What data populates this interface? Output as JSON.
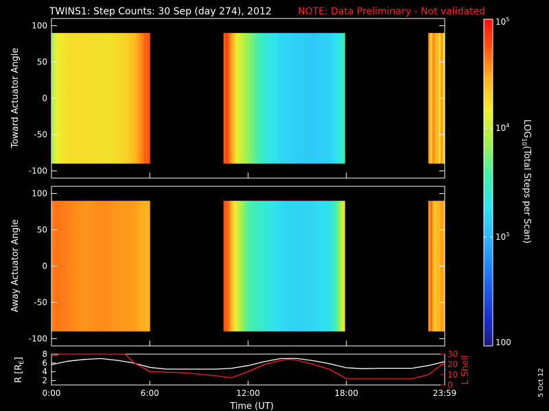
{
  "title": "TWINS1: Step Counts: 30 Sep (day 274), 2012",
  "note": "NOTE: Data Preliminary - Not validated",
  "date_stamp": "5 Oct 12",
  "colors": {
    "background": "#000000",
    "axes": "#ffffff",
    "note": "#ff2020",
    "r_line": "#ffffff",
    "lshell_line": "#ff2020"
  },
  "colorbar": {
    "label": "LOG10(Total Steps per Scan)",
    "label_parts": [
      "LOG",
      "10",
      "(Total Steps per Scan)"
    ],
    "scale": "log",
    "range": [
      100,
      100000
    ],
    "ticks": [
      {
        "value": 100,
        "label": "100"
      },
      {
        "value": 1000,
        "base": "10",
        "exp": "3"
      },
      {
        "value": 10000,
        "base": "10",
        "exp": "4"
      },
      {
        "value": 100000,
        "base": "10",
        "exp": "5"
      }
    ]
  },
  "chart_data": [
    {
      "type": "heatmap",
      "ylabel": "Toward Actuator Angle",
      "ylim": [
        -110,
        110
      ],
      "yticks": [
        -100,
        -50,
        0,
        50,
        100
      ],
      "x_unit": "hours UT",
      "xlim": [
        0,
        24
      ],
      "y_coverage": [
        -90,
        90
      ],
      "segments": [
        {
          "start": 0.0,
          "end": 6.0,
          "profile": [
            [
              0.0,
              5000
            ],
            [
              0.15,
              10000
            ],
            [
              0.3,
              14000
            ],
            [
              0.6,
              16000
            ],
            [
              1.2,
              18000
            ],
            [
              2.5,
              18000
            ],
            [
              3.5,
              17000
            ],
            [
              4.5,
              20000
            ],
            [
              5.0,
              25000
            ],
            [
              5.4,
              35000
            ],
            [
              5.7,
              50000
            ],
            [
              6.0,
              55000
            ]
          ]
        },
        {
          "start": 10.5,
          "end": 17.9,
          "profile": [
            [
              10.5,
              50000
            ],
            [
              10.7,
              65000
            ],
            [
              10.9,
              40000
            ],
            [
              11.1,
              25000
            ],
            [
              11.4,
              12000
            ],
            [
              11.8,
              8000
            ],
            [
              12.3,
              5000
            ],
            [
              13.0,
              2500
            ],
            [
              14.0,
              1600
            ],
            [
              15.0,
              1400
            ],
            [
              16.0,
              1300
            ],
            [
              17.0,
              1500
            ],
            [
              17.5,
              2000
            ],
            [
              17.9,
              3500
            ]
          ]
        },
        {
          "start": 23.0,
          "end": 24.0,
          "profile": [
            [
              23.0,
              40000
            ],
            [
              23.2,
              20000
            ],
            [
              23.4,
              60000
            ],
            [
              23.5,
              8000
            ],
            [
              23.6,
              50000
            ],
            [
              23.7,
              15000
            ],
            [
              23.8,
              40000
            ],
            [
              23.9,
              20000
            ],
            [
              24.0,
              12000
            ]
          ]
        }
      ]
    },
    {
      "type": "heatmap",
      "ylabel": "Away Actuator Angle",
      "ylim": [
        -110,
        110
      ],
      "yticks": [
        -100,
        -50,
        0,
        50,
        100
      ],
      "x_unit": "hours UT",
      "xlim": [
        0,
        24
      ],
      "y_coverage": [
        -90,
        90
      ],
      "segments": [
        {
          "start": 0.0,
          "end": 6.0,
          "profile": [
            [
              0.0,
              40000
            ],
            [
              0.3,
              45000
            ],
            [
              1.0,
              40000
            ],
            [
              2.0,
              35000
            ],
            [
              3.0,
              38000
            ],
            [
              4.0,
              35000
            ],
            [
              5.0,
              33000
            ],
            [
              5.5,
              30000
            ],
            [
              6.0,
              28000
            ]
          ]
        },
        {
          "start": 10.5,
          "end": 17.9,
          "profile": [
            [
              10.5,
              60000
            ],
            [
              10.8,
              45000
            ],
            [
              11.0,
              25000
            ],
            [
              11.4,
              10000
            ],
            [
              12.0,
              4000
            ],
            [
              13.0,
              2500
            ],
            [
              14.0,
              1700
            ],
            [
              15.0,
              1500
            ],
            [
              16.0,
              1600
            ],
            [
              17.0,
              2000
            ],
            [
              17.5,
              5000
            ],
            [
              17.9,
              20000
            ]
          ]
        },
        {
          "start": 23.0,
          "end": 24.0,
          "profile": [
            [
              23.0,
              30000
            ],
            [
              23.2,
              50000
            ],
            [
              23.4,
              15000
            ],
            [
              23.5,
              45000
            ],
            [
              23.6,
              20000
            ],
            [
              23.8,
              35000
            ],
            [
              24.0,
              25000
            ]
          ]
        }
      ]
    },
    {
      "type": "line",
      "xlabel": "Time (UT)",
      "ylabel": "R [RE]",
      "ylabel_parts": [
        "R [R",
        "E",
        "]"
      ],
      "ylim": [
        1,
        8
      ],
      "yticks": [
        2,
        4,
        6,
        8
      ],
      "y2label": "L Shell",
      "y2lim": [
        0,
        30
      ],
      "y2ticks": [
        0,
        10,
        20,
        30
      ],
      "xlim": [
        0,
        24
      ],
      "xticks": [
        0,
        6,
        12,
        18,
        24
      ],
      "xtick_labels": [
        "0:00",
        "6:00",
        "12:00",
        "18:00",
        "23:59"
      ],
      "series": [
        {
          "name": "R",
          "axis": "left",
          "x": [
            0,
            1,
            2,
            3,
            4,
            5,
            6,
            7,
            8,
            9,
            10,
            11,
            12,
            13,
            14,
            15,
            16,
            17,
            18,
            19,
            20,
            21,
            22,
            23,
            24
          ],
          "values": [
            5.6,
            6.4,
            6.8,
            7.0,
            6.6,
            6.0,
            5.0,
            4.6,
            4.6,
            4.6,
            4.6,
            4.8,
            5.4,
            6.3,
            7.0,
            7.0,
            6.5,
            5.8,
            4.9,
            4.7,
            4.8,
            4.8,
            4.8,
            5.4,
            6.3
          ]
        },
        {
          "name": "L Shell",
          "axis": "right",
          "x": [
            0,
            0.5,
            1,
            4,
            4.5,
            5,
            6,
            8,
            10,
            11,
            12,
            13,
            14,
            14.5,
            15,
            16,
            17,
            18,
            20,
            22,
            23,
            24
          ],
          "values": [
            28,
            30,
            31,
            31,
            30,
            22,
            13,
            12,
            9,
            7,
            13,
            20,
            24,
            25,
            24,
            20,
            15,
            6,
            6,
            6,
            10,
            22
          ]
        }
      ]
    }
  ]
}
